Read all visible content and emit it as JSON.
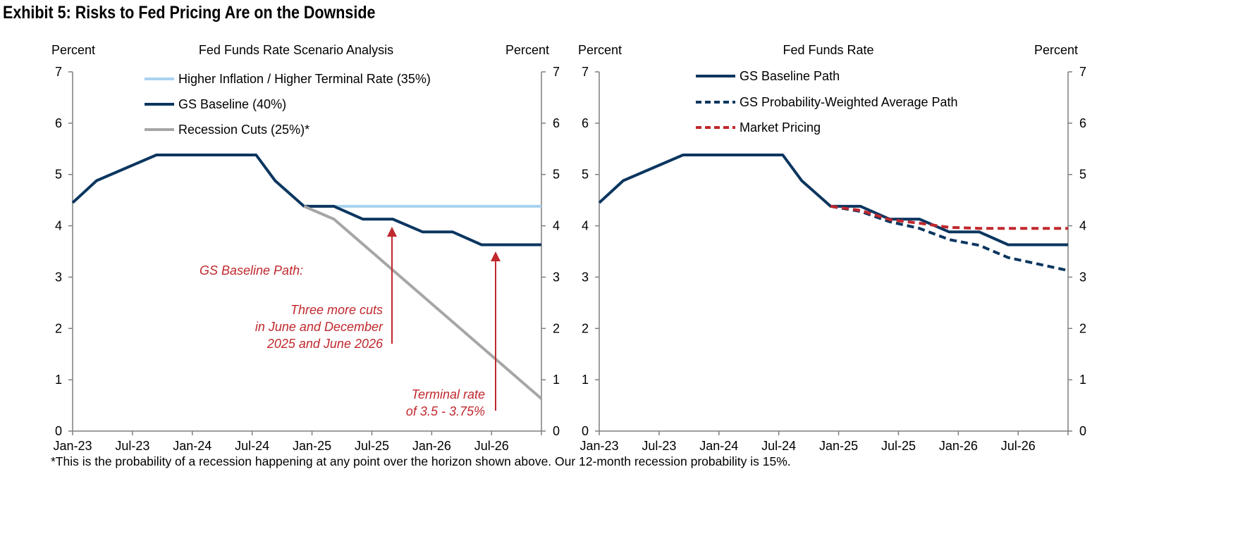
{
  "title": "Exhibit 5: Risks to Fed Pricing Are on the Downside",
  "footnote": "*This is the probability of a recession happening at any point over the horizon shown above.  Our 12-month recession probability is 15%.",
  "colors": {
    "navy": "#0b365f",
    "light_blue": "#a9d3ef",
    "gray": "#a6a6a6",
    "red": "#c0282d"
  },
  "chart_data": [
    {
      "type": "line",
      "title": "Fed Funds Rate Scenario Analysis",
      "ylabel_left": "Percent",
      "ylabel_right": "Percent",
      "ylim": [
        0,
        7
      ],
      "yticks": [
        "0",
        "1",
        "2",
        "3",
        "4",
        "5",
        "6",
        "7"
      ],
      "x_unit": "months since Jan-23",
      "xlim": [
        0,
        47
      ],
      "xticks": [
        {
          "label": "Jan-23",
          "m": 0
        },
        {
          "label": "Jul-23",
          "m": 6
        },
        {
          "label": "Jan-24",
          "m": 12
        },
        {
          "label": "Jul-24",
          "m": 18
        },
        {
          "label": "Jan-25",
          "m": 24
        },
        {
          "label": "Jul-25",
          "m": 30
        },
        {
          "label": "Jan-26",
          "m": 36
        },
        {
          "label": "Jul-26",
          "m": 42
        }
      ],
      "legend_position": "top-left",
      "series": [
        {
          "name": "Higher Inflation / Higher Terminal Rate (35%)",
          "color": "#a9d3ef",
          "dash": false,
          "points": [
            [
              23.2,
              4.38
            ],
            [
              47,
              4.38
            ]
          ]
        },
        {
          "name": "GS Baseline (40%)",
          "color": "#0b365f",
          "dash": false,
          "points": [
            [
              0,
              4.45
            ],
            [
              2.4,
              4.88
            ],
            [
              8.4,
              5.38
            ],
            [
              18.4,
              5.38
            ],
            [
              20.3,
              4.88
            ],
            [
              23.2,
              4.38
            ],
            [
              26.2,
              4.38
            ],
            [
              29.1,
              4.13
            ],
            [
              32.1,
              4.13
            ],
            [
              35.1,
              3.88
            ],
            [
              38.1,
              3.88
            ],
            [
              41,
              3.63
            ],
            [
              47,
              3.63
            ]
          ]
        },
        {
          "name": "Recession Cuts (25%)*",
          "color": "#a6a6a6",
          "dash": false,
          "points": [
            [
              23.2,
              4.38
            ],
            [
              26.2,
              4.13
            ],
            [
              47,
              0.63
            ]
          ]
        }
      ],
      "annotations": [
        {
          "lines": [
            "GS Baseline Path:"
          ]
        },
        {
          "lines": [
            "Three more cuts",
            "in June and December",
            "2025 and June 2026"
          ]
        },
        {
          "lines": [
            "Terminal rate",
            "of 3.5 - 3.75%"
          ]
        }
      ]
    },
    {
      "type": "line",
      "title": "Fed Funds Rate",
      "ylabel_left": "Percent",
      "ylabel_right": "Percent",
      "ylim": [
        0,
        7
      ],
      "yticks": [
        "0",
        "1",
        "2",
        "3",
        "4",
        "5",
        "6",
        "7"
      ],
      "x_unit": "months since Jan-23",
      "xlim": [
        0,
        47
      ],
      "xticks": [
        {
          "label": "Jan-23",
          "m": 0
        },
        {
          "label": "Jul-23",
          "m": 6
        },
        {
          "label": "Jan-24",
          "m": 12
        },
        {
          "label": "Jul-24",
          "m": 18
        },
        {
          "label": "Jan-25",
          "m": 24
        },
        {
          "label": "Jul-25",
          "m": 30
        },
        {
          "label": "Jan-26",
          "m": 36
        },
        {
          "label": "Jul-26",
          "m": 42
        }
      ],
      "legend_position": "top-left",
      "series": [
        {
          "name": "GS Baseline Path",
          "color": "#0b365f",
          "dash": false,
          "points": [
            [
              0,
              4.45
            ],
            [
              2.4,
              4.88
            ],
            [
              8.4,
              5.38
            ],
            [
              18.4,
              5.38
            ],
            [
              20.3,
              4.88
            ],
            [
              23.2,
              4.38
            ],
            [
              26.2,
              4.38
            ],
            [
              29.1,
              4.13
            ],
            [
              32.1,
              4.13
            ],
            [
              35.1,
              3.88
            ],
            [
              38.1,
              3.88
            ],
            [
              41,
              3.63
            ],
            [
              47,
              3.63
            ]
          ]
        },
        {
          "name": "GS Probability-Weighted Average Path",
          "color": "#0b365f",
          "dash": true,
          "points": [
            [
              23.2,
              4.38
            ],
            [
              26.2,
              4.28
            ],
            [
              29.1,
              4.08
            ],
            [
              32.1,
              3.95
            ],
            [
              35.1,
              3.73
            ],
            [
              38.1,
              3.62
            ],
            [
              41,
              3.38
            ],
            [
              47,
              3.13
            ]
          ]
        },
        {
          "name": "Market Pricing",
          "color": "#c0282d",
          "dash": true,
          "points": [
            [
              23.2,
              4.38
            ],
            [
              26.2,
              4.3
            ],
            [
              29.1,
              4.12
            ],
            [
              32.1,
              4.05
            ],
            [
              35.1,
              3.97
            ],
            [
              38.1,
              3.95
            ],
            [
              47,
              3.95
            ]
          ]
        }
      ]
    }
  ]
}
